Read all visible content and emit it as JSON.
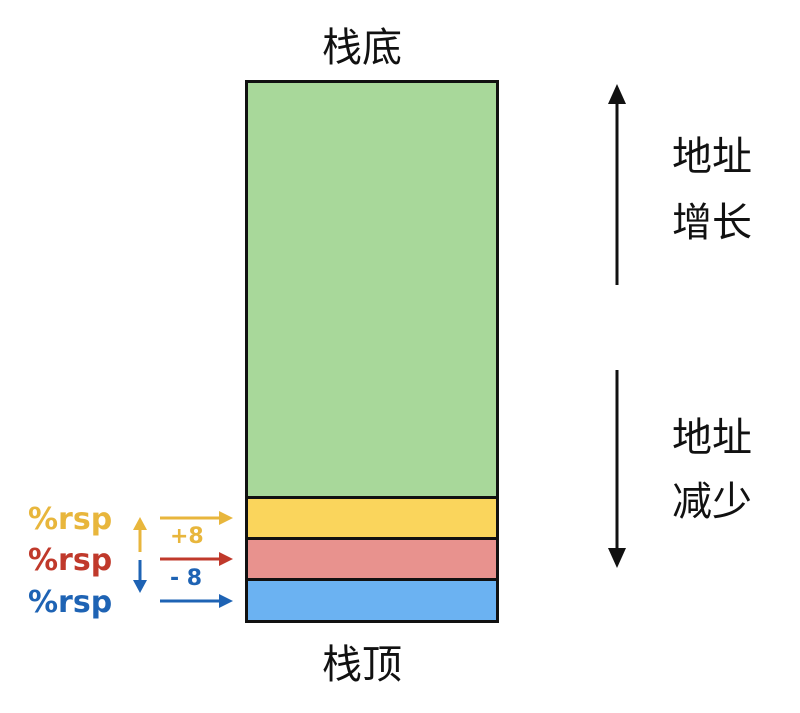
{
  "stack": {
    "bottom_label": "栈底",
    "top_label": "栈顶",
    "colors": {
      "body": "#A8D89A",
      "yellow": "#FAD55C",
      "red": "#E8928E",
      "blue": "#6BB2F2"
    }
  },
  "address": {
    "increase_line1": "地址",
    "increase_line2": "增长",
    "decrease_line1": "地址",
    "decrease_line2": "减少"
  },
  "rsp": {
    "yellow": {
      "label": "%rsp",
      "color": "#E8B63C"
    },
    "red": {
      "label": "%rsp",
      "color": "#C0392B"
    },
    "blue": {
      "label": "%rsp",
      "color": "#1E63B4"
    }
  },
  "ops": {
    "plus": "+8",
    "minus": "- 8"
  }
}
